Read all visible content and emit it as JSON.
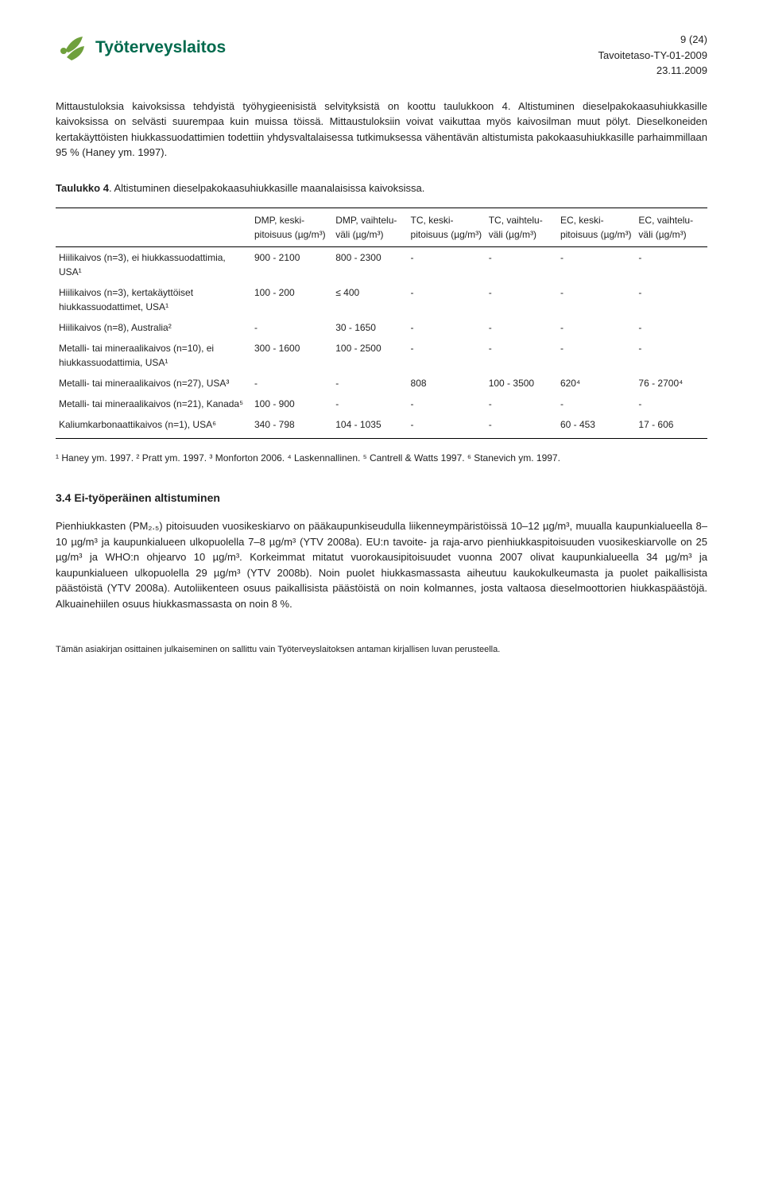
{
  "header": {
    "page_num": "9 (24)",
    "brand": "Työterveyslaitos",
    "doc_ref": "Tavoitetaso-TY-01-2009",
    "date": "23.11.2009"
  },
  "logo": {
    "primary_color": "#6fa03c",
    "accent_color": "#006a4d"
  },
  "para1": "Mittaustuloksia kaivoksissa tehdyistä työhygieenisistä selvityksistä on koottu taulukkoon 4. Altistuminen dieselpakokaasuhiukkasille kaivoksissa on selvästi suurempaa kuin muissa töissä. Mittaustuloksiin voivat vaikuttaa myös kaivosilman muut pölyt. Dieselkoneiden kertakäyttöisten hiukkassuodattimien todettiin yhdysvaltalaisessa tutkimuksessa vähentävän altistumista pakokaasuhiukkasille parhaimmillaan 95 % (Haney ym. 1997).",
  "table_caption_label": "Taulukko 4",
  "table_caption_text": ". Altistuminen dieselpakokaasuhiukkasille maanalaisissa kaivoksissa.",
  "columns": {
    "c1": "DMP, keski-pitoisuus (µg/m³)",
    "c2": "DMP, vaihtelu-väli (µg/m³)",
    "c3": "TC, keski-pitoisuus (µg/m³)",
    "c4": "TC, vaihtelu-väli (µg/m³)",
    "c5": "EC, keski-pitoisuus (µg/m³)",
    "c6": "EC, vaihtelu-väli (µg/m³)"
  },
  "rows": [
    {
      "label": "Hiilikaivos (n=3), ei hiukkassuodattimia, USA¹",
      "c1": "900 - 2100",
      "c2": "800 - 2300",
      "c3": "-",
      "c4": "-",
      "c5": "-",
      "c6": "-"
    },
    {
      "label": "Hiilikaivos (n=3), kertakäyttöiset hiukkassuodattimet, USA¹",
      "c1": "100 - 200",
      "c2": "≤ 400",
      "c3": "-",
      "c4": "-",
      "c5": "-",
      "c6": "-"
    },
    {
      "label": "Hiilikaivos (n=8), Australia²",
      "c1": "-",
      "c2": "30 - 1650",
      "c3": "-",
      "c4": "-",
      "c5": "-",
      "c6": "-"
    },
    {
      "label": "Metalli- tai mineraalikaivos (n=10), ei hiukkassuodattimia, USA¹",
      "c1": "300 - 1600",
      "c2": "100 - 2500",
      "c3": "-",
      "c4": "-",
      "c5": "-",
      "c6": "-"
    },
    {
      "label": "Metalli- tai mineraalikaivos (n=27), USA³",
      "c1": "-",
      "c2": "-",
      "c3": "808",
      "c4": "100 - 3500",
      "c5": "620⁴",
      "c6": "76 - 2700⁴"
    },
    {
      "label": "Metalli- tai mineraalikaivos (n=21), Kanada⁵",
      "c1": "100 - 900",
      "c2": "-",
      "c3": "-",
      "c4": "-",
      "c5": "-",
      "c6": "-"
    },
    {
      "label": "Kaliumkarbonaattikaivos (n=1), USA⁶",
      "c1": "340 - 798",
      "c2": "104 - 1035",
      "c3": "-",
      "c4": "-",
      "c5": "60 - 453",
      "c6": "17 - 606"
    }
  ],
  "table_footnote": "¹ Haney ym. 1997. ² Pratt ym. 1997. ³ Monforton 2006. ⁴ Laskennallinen. ⁵ Cantrell & Watts 1997. ⁶ Stanevich ym. 1997.",
  "section_heading": "3.4 Ei-työperäinen altistuminen",
  "para2": "Pienhiukkasten (PM₂.₅) pitoisuuden vuosikeskiarvo on pääkaupunkiseudulla liikenneympäristöissä 10–12 µg/m³, muualla kaupunkialueella 8–10 µg/m³ ja kaupunkialueen ulkopuolella 7–8 µg/m³ (YTV 2008a). EU:n tavoite- ja raja-arvo pienhiukkaspitoisuuden vuosikeskiarvolle on 25 µg/m³ ja WHO:n ohjearvo 10 µg/m³. Korkeimmat mitatut vuorokausipitoisuudet vuonna 2007 olivat kaupunkialueella 34 µg/m³ ja kaupunkialueen ulkopuolella 29 µg/m³ (YTV 2008b). Noin puolet hiukkasmassasta aiheutuu kaukokulkeumasta ja puolet paikallisista päästöistä (YTV 2008a). Autoliikenteen osuus paikallisista päästöistä on noin kolmannes, josta valtaosa dieselmoottorien hiukkaspäästöjä. Alkuainehiilen osuus hiukkasmassasta on noin 8 %.",
  "footer_note": "Tämän asiakirjan osittainen julkaiseminen on sallittu vain Työterveyslaitoksen antaman kirjallisen luvan perusteella."
}
